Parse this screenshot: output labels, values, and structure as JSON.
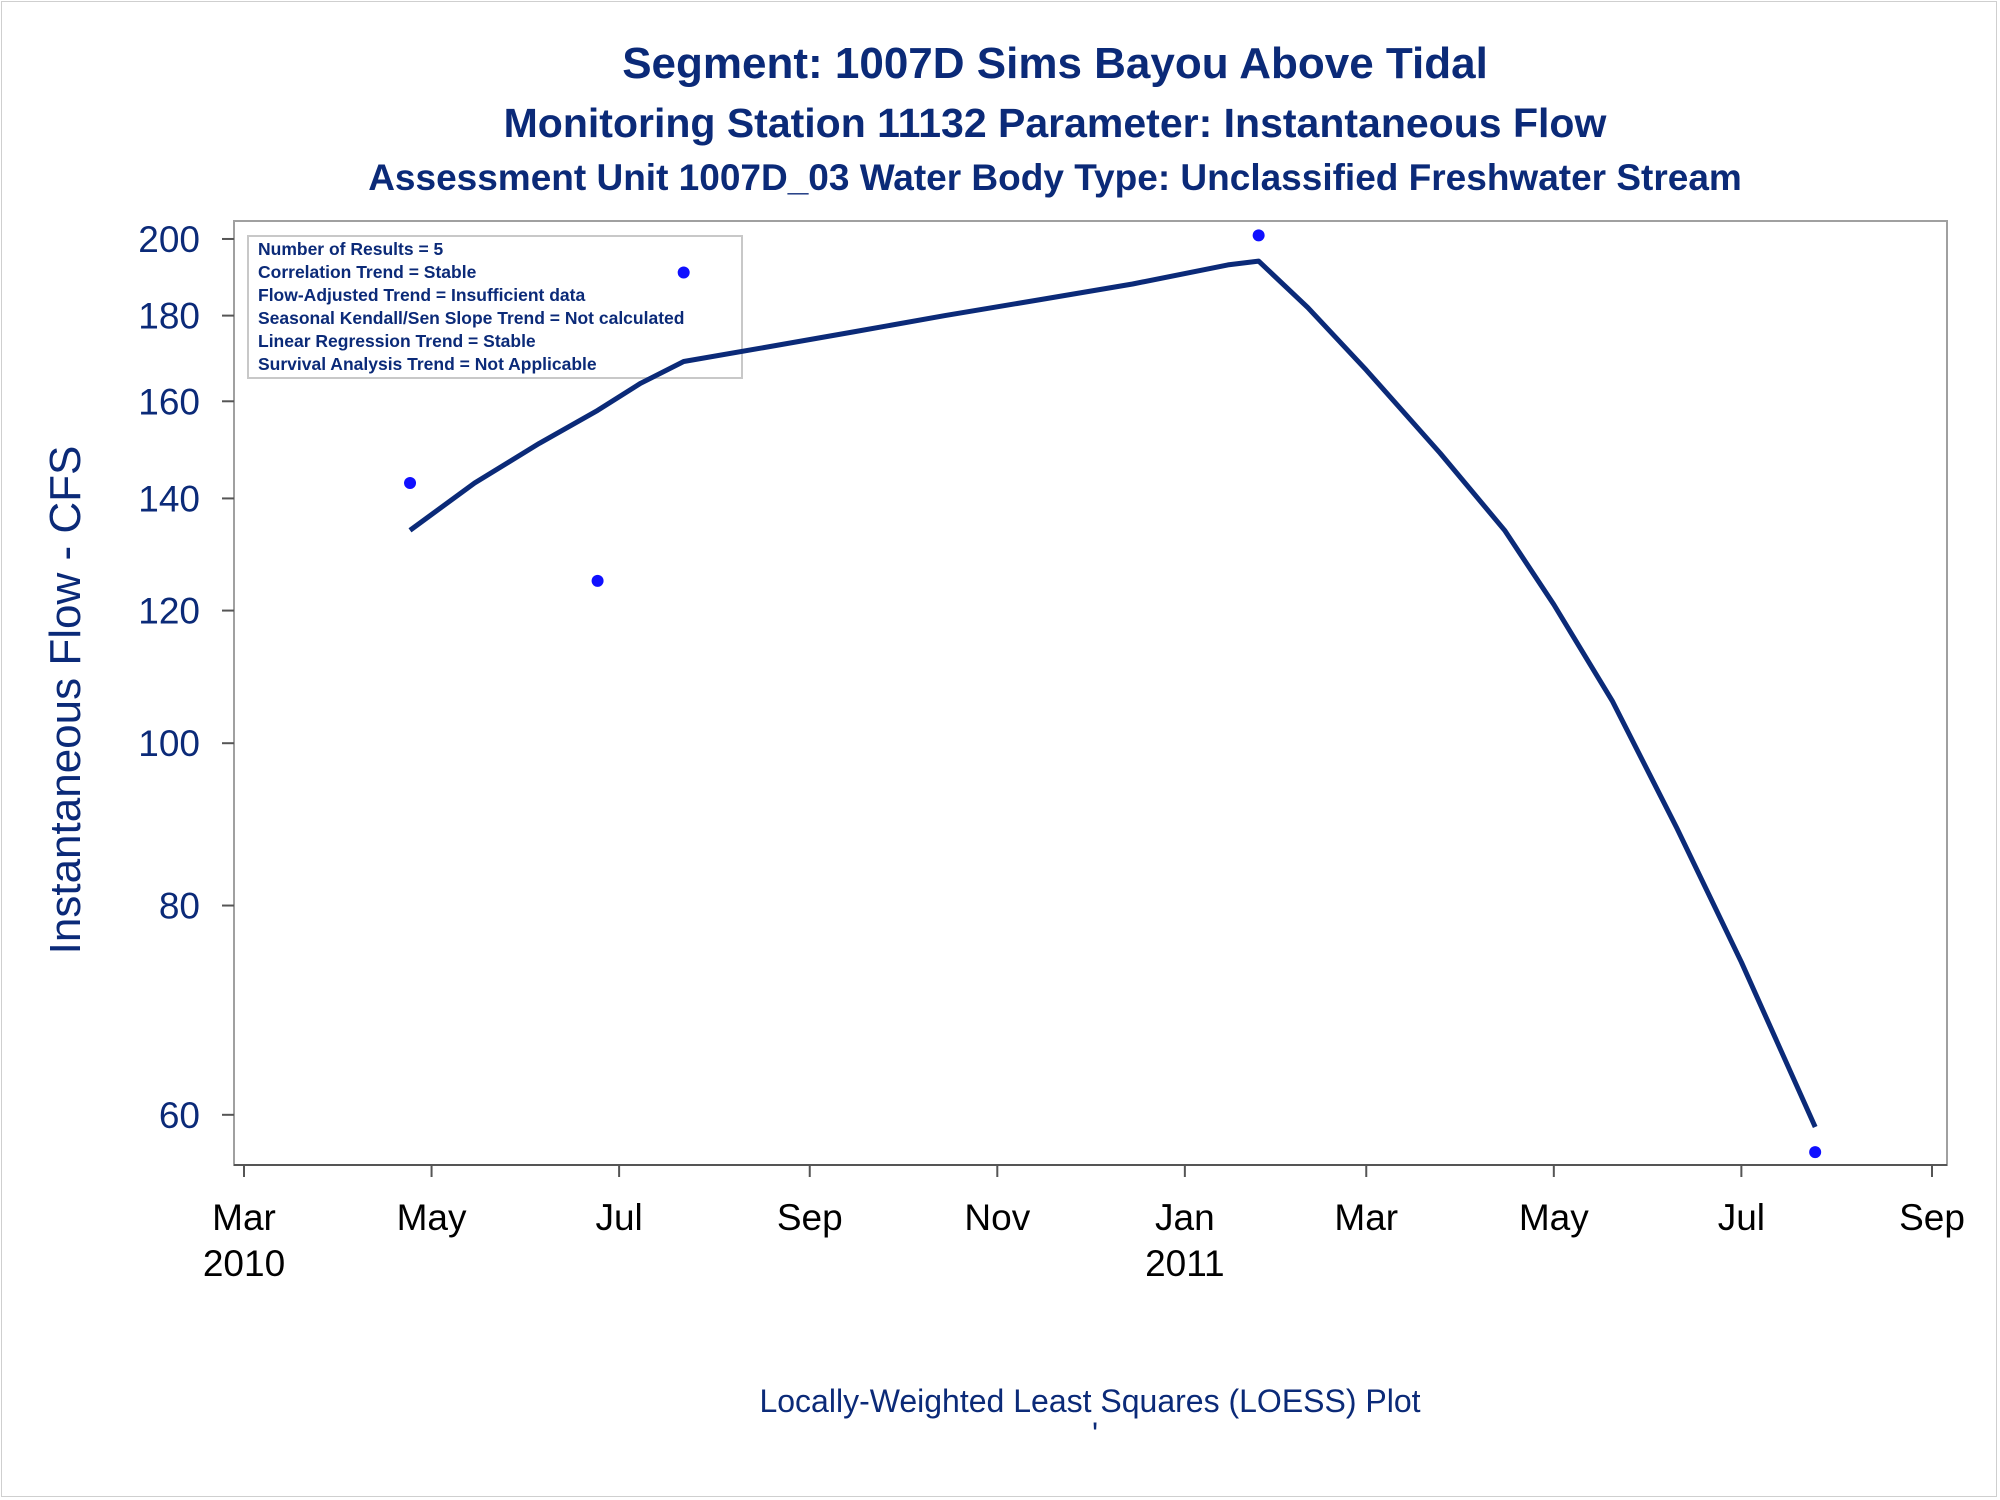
{
  "chart_data": {
    "type": "scatter",
    "title": "Segment: 1007D  Sims Bayou Above Tidal",
    "subtitle": "Monitoring Station 11132 Parameter: Instantaneous Flow",
    "subtitle2": "Assessment Unit 1007D_03   Water Body Type: Unclassified Freshwater Stream",
    "ylabel": "Instantaneous Flow - CFS",
    "footnote": "Locally-Weighted Least Squares (LOESS) Plot",
    "footnote_mark": "'",
    "y_scale": "log",
    "ylim": [
      56,
      205
    ],
    "xlim": [
      "2010-03-01",
      "2011-09-01"
    ],
    "y_ticks": [
      60,
      80,
      100,
      120,
      140,
      160,
      180,
      200
    ],
    "x_ticks": [
      {
        "date": "2010-03-01",
        "label": "Mar",
        "year": "2010"
      },
      {
        "date": "2010-05-01",
        "label": "May",
        "year": ""
      },
      {
        "date": "2010-07-01",
        "label": "Jul",
        "year": ""
      },
      {
        "date": "2010-09-01",
        "label": "Sep",
        "year": ""
      },
      {
        "date": "2010-11-01",
        "label": "Nov",
        "year": ""
      },
      {
        "date": "2011-01-01",
        "label": "Jan",
        "year": "2011"
      },
      {
        "date": "2011-03-01",
        "label": "Mar",
        "year": ""
      },
      {
        "date": "2011-05-01",
        "label": "May",
        "year": ""
      },
      {
        "date": "2011-07-01",
        "label": "Jul",
        "year": ""
      },
      {
        "date": "2011-09-01",
        "label": "Sep",
        "year": ""
      }
    ],
    "stats_box": [
      "Number of Results = 5",
      "Correlation Trend = Stable",
      "Flow-Adjusted Trend = Insufficient data",
      "Seasonal Kendall/Sen Slope Trend = Not calculated",
      "Linear Regression Trend = Stable",
      "Survival Analysis Trend = Not Applicable"
    ],
    "stats_box_placement": "top-left",
    "series": [
      {
        "type": "scatter",
        "color": "#1010ff",
        "points": [
          {
            "x": "2010-04-24",
            "y": 143
          },
          {
            "x": "2010-06-24",
            "y": 125
          },
          {
            "x": "2010-07-22",
            "y": 191
          },
          {
            "x": "2011-01-25",
            "y": 201
          },
          {
            "x": "2011-07-25",
            "y": 57
          }
        ]
      },
      {
        "type": "line",
        "color": "#0b2a78",
        "points": [
          {
            "x": "2010-04-24",
            "y": 134
          },
          {
            "x": "2010-05-15",
            "y": 143
          },
          {
            "x": "2010-06-05",
            "y": 151
          },
          {
            "x": "2010-06-24",
            "y": 158
          },
          {
            "x": "2010-07-08",
            "y": 164
          },
          {
            "x": "2010-07-22",
            "y": 169
          },
          {
            "x": "2010-08-15",
            "y": 172
          },
          {
            "x": "2010-09-15",
            "y": 176
          },
          {
            "x": "2010-10-15",
            "y": 180
          },
          {
            "x": "2010-11-15",
            "y": 184
          },
          {
            "x": "2010-12-15",
            "y": 188
          },
          {
            "x": "2011-01-15",
            "y": 193
          },
          {
            "x": "2011-01-25",
            "y": 194
          },
          {
            "x": "2011-02-10",
            "y": 182
          },
          {
            "x": "2011-03-01",
            "y": 167
          },
          {
            "x": "2011-03-25",
            "y": 149
          },
          {
            "x": "2011-04-15",
            "y": 134
          },
          {
            "x": "2011-05-01",
            "y": 121
          },
          {
            "x": "2011-05-20",
            "y": 106
          },
          {
            "x": "2011-06-10",
            "y": 89
          },
          {
            "x": "2011-07-01",
            "y": 74
          },
          {
            "x": "2011-07-25",
            "y": 59
          }
        ]
      }
    ]
  }
}
